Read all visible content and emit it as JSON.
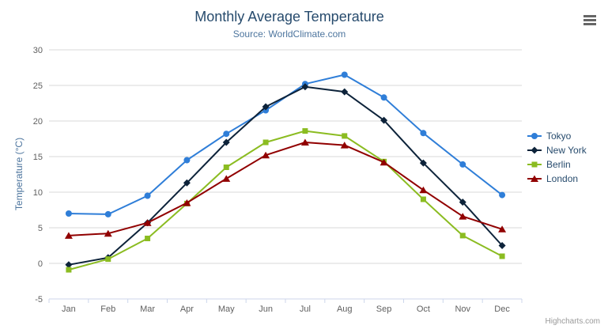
{
  "chart": {
    "title": "Monthly Average Temperature",
    "subtitle": "Source: WorldClimate.com",
    "y_axis_title": "Temperature (°C)",
    "credits": "Highcharts.com",
    "menu_icon": "hamburger-menu"
  },
  "chart_data": {
    "type": "line",
    "title": "Monthly Average Temperature",
    "subtitle": "Source: WorldClimate.com",
    "xlabel": "",
    "ylabel": "Temperature (°C)",
    "categories": [
      "Jan",
      "Feb",
      "Mar",
      "Apr",
      "May",
      "Jun",
      "Jul",
      "Aug",
      "Sep",
      "Oct",
      "Nov",
      "Dec"
    ],
    "ylim": [
      -5,
      30
    ],
    "y_tick_interval": 5,
    "grid": true,
    "legend_position": "right",
    "series": [
      {
        "name": "Tokyo",
        "color": "#2f7ed8",
        "marker": "circle",
        "values": [
          7.0,
          6.9,
          9.5,
          14.5,
          18.2,
          21.5,
          25.2,
          26.5,
          23.3,
          18.3,
          13.9,
          9.6
        ]
      },
      {
        "name": "New York",
        "color": "#0d233a",
        "marker": "diamond",
        "values": [
          -0.2,
          0.8,
          5.7,
          11.3,
          17.0,
          22.0,
          24.8,
          24.1,
          20.1,
          14.1,
          8.6,
          2.5
        ]
      },
      {
        "name": "Berlin",
        "color": "#8bbc21",
        "marker": "square",
        "values": [
          -0.9,
          0.6,
          3.5,
          8.4,
          13.5,
          17.0,
          18.6,
          17.9,
          14.3,
          9.0,
          3.9,
          1.0
        ]
      },
      {
        "name": "London",
        "color": "#910000",
        "marker": "triangle",
        "values": [
          3.9,
          4.2,
          5.7,
          8.5,
          11.9,
          15.2,
          17.0,
          16.6,
          14.2,
          10.3,
          6.6,
          4.8
        ]
      }
    ]
  }
}
